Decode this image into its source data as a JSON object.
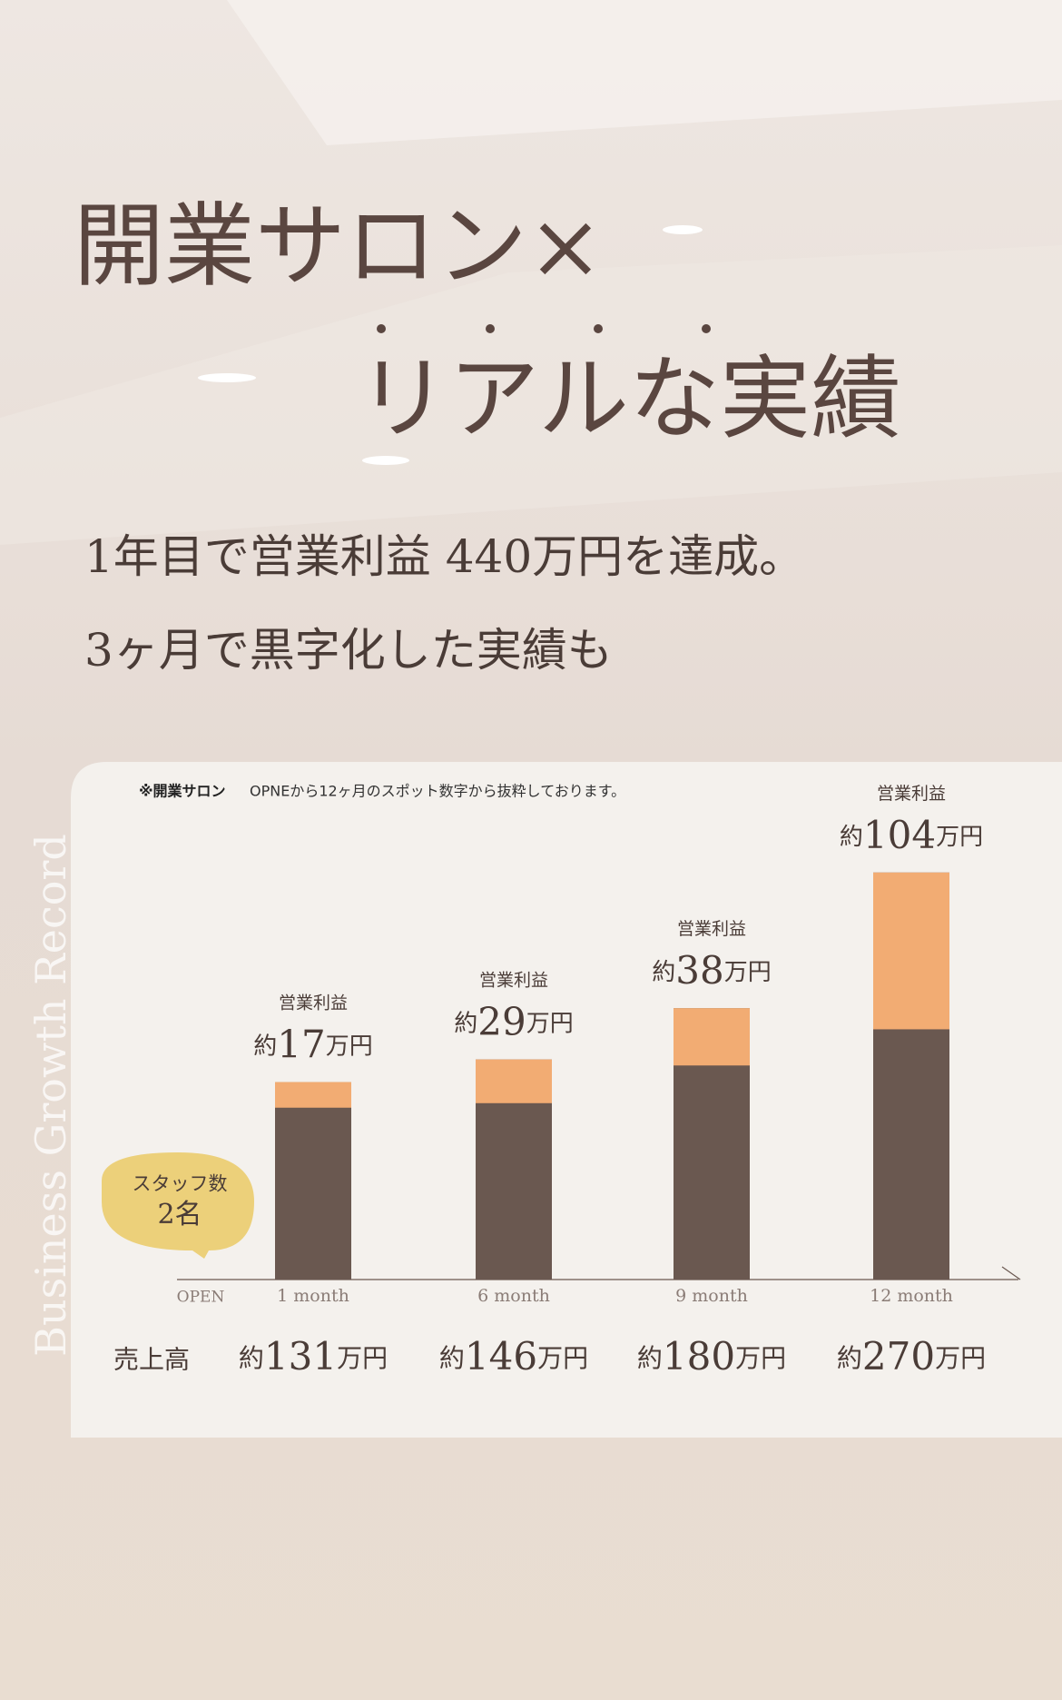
{
  "title_lines": [
    "開業サロン×",
    "リアルな実績"
  ],
  "subtitle_lines": [
    "1年目で営業利益 440万円を達成。",
    "3ヶ月で黒字化した実績も"
  ],
  "note": {
    "label": "※開業サロン",
    "text": "OPNEから12ヶ月のスポット数字から抜粋しております。"
  },
  "badge": {
    "label": "スタッフ数",
    "value": "2名"
  },
  "side_text": "Business Growth Record",
  "chart_data": {
    "type": "bar",
    "categories": [
      "1 month",
      "6 month",
      "9 month",
      "12 month"
    ],
    "origin_label": "OPEN",
    "series": [
      {
        "name": "売上高",
        "color": "#6a5850",
        "values": [
          131,
          146,
          180,
          270
        ],
        "value_labels": [
          "約131万円",
          "約146万円",
          "約180万円",
          "約270万円"
        ]
      },
      {
        "name": "営業利益",
        "color": "#f2ac73",
        "values": [
          17,
          29,
          38,
          104
        ],
        "value_labels": [
          "約17万円",
          "約29万円",
          "約38万円",
          "約104万円"
        ]
      }
    ],
    "ylim": [
      0,
      300
    ]
  }
}
